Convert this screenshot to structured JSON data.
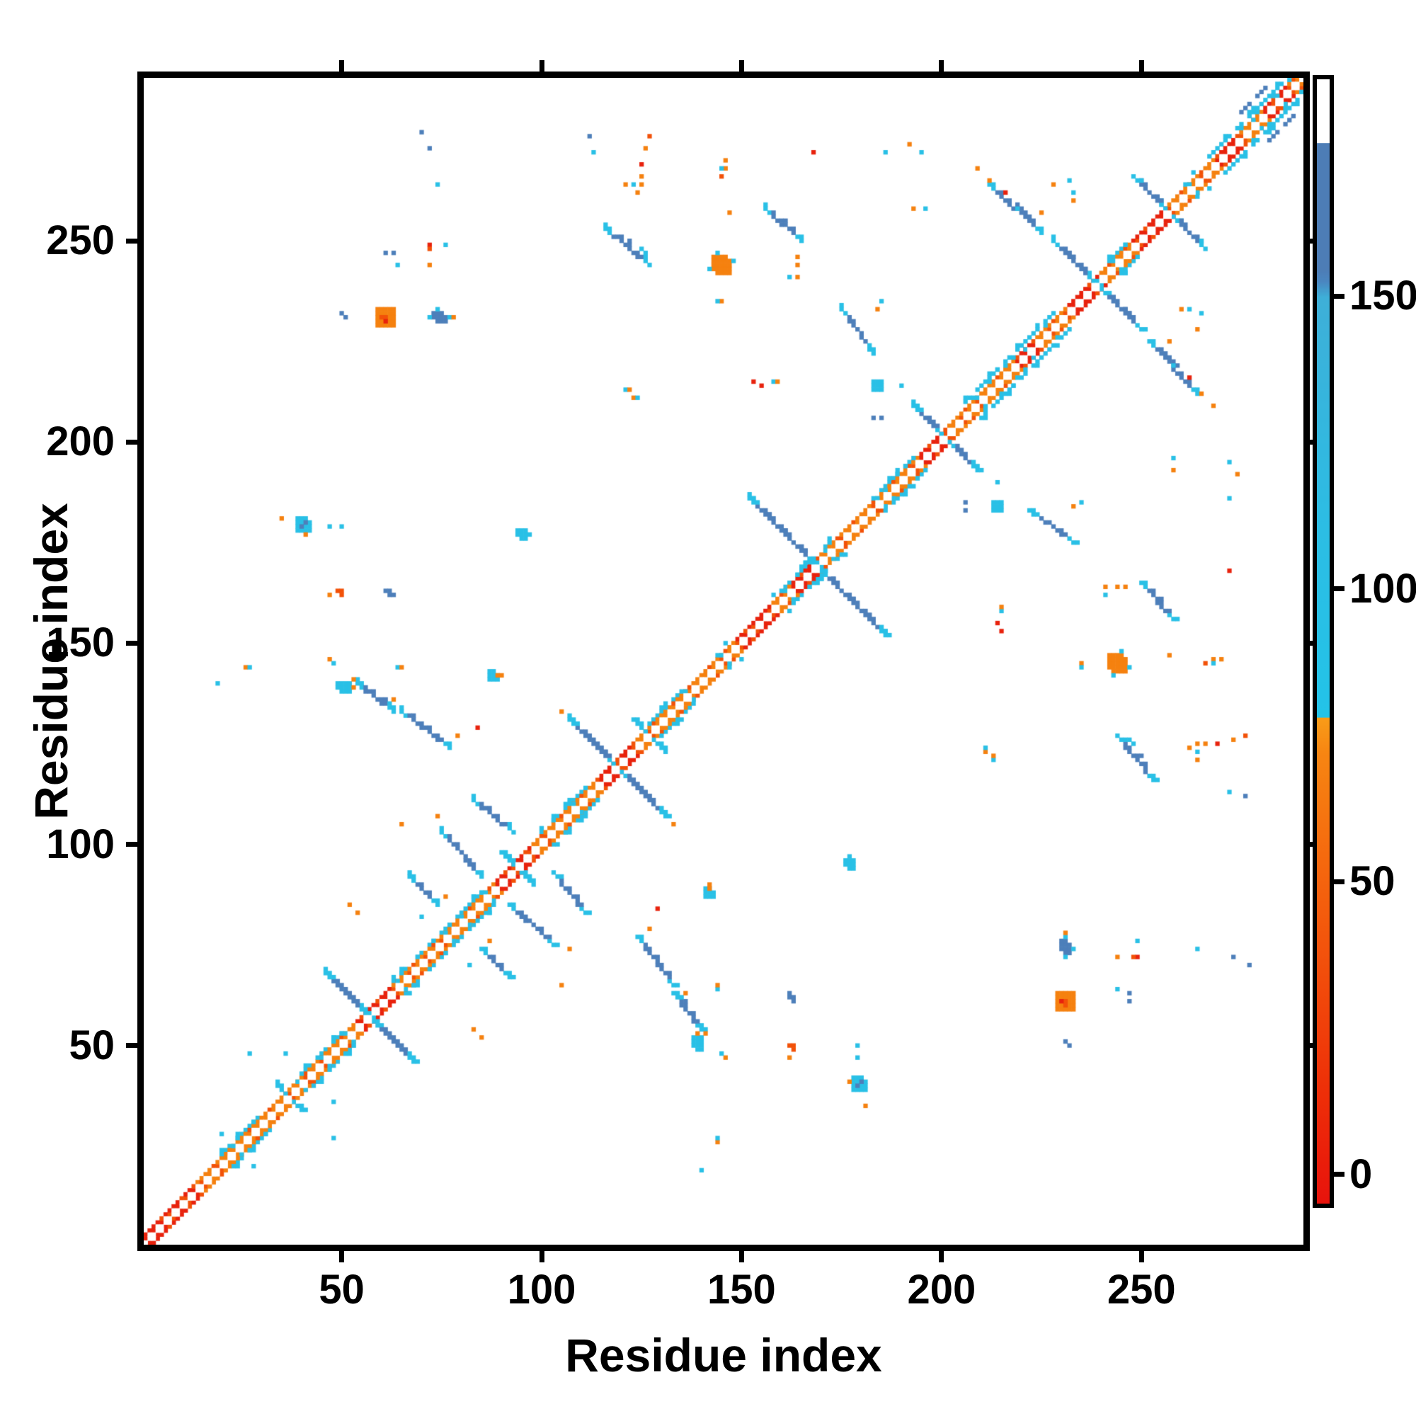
{
  "figure": {
    "background": "#ffffff"
  },
  "axes": {
    "x": {
      "title": "Residue index",
      "ticks": [
        50,
        100,
        150,
        200,
        250
      ],
      "range": [
        1,
        290
      ]
    },
    "y": {
      "title": "Residue index",
      "ticks": [
        50,
        100,
        150,
        200,
        250
      ],
      "range": [
        1,
        290
      ]
    }
  },
  "colorbar": {
    "ticks": [
      0,
      50,
      100,
      150
    ],
    "value_range": [
      -5,
      187
    ],
    "stops": [
      [
        0,
        "#e8130c"
      ],
      [
        10,
        "#ee2f08"
      ],
      [
        20,
        "#f24c0b"
      ],
      [
        30,
        "#f5670e"
      ],
      [
        40,
        "#f78512"
      ],
      [
        43.2,
        "#f99c18"
      ],
      [
        43.25,
        "#23c3e8"
      ],
      [
        60,
        "#2cbde4"
      ],
      [
        80.6,
        "#3eafd8"
      ],
      [
        82,
        "#4a86c0"
      ],
      [
        83,
        "#4d7db6"
      ],
      [
        94.3,
        "#4d7db6"
      ],
      [
        94.35,
        "#ffffff"
      ],
      [
        100,
        "#ffffff"
      ]
    ]
  },
  "chart_data": {
    "type": "heatmap",
    "subtype": "protein-residue-contact-map",
    "title": "",
    "xlabel": "Residue index",
    "ylabel": "Residue index",
    "n_residues": 290,
    "symmetric": true,
    "grid": false,
    "palette": {
      "r": "#e8220d",
      "q": "#f25108",
      "o": "#f5810f",
      "c": "#29c0e6",
      "b": "#4d7fba",
      "w": "#ffffff"
    },
    "diagonal": {
      "band_offsets": [
        1,
        2
      ],
      "default_color": "o",
      "red_segments": [
        [
          1,
          13
        ],
        [
          54,
          62
        ],
        [
          89,
          97
        ],
        [
          115,
          123
        ],
        [
          149,
          157
        ],
        [
          163,
          167
        ],
        [
          195,
          200
        ],
        [
          219,
          223
        ],
        [
          232,
          239
        ],
        [
          248,
          256
        ],
        [
          269,
          274
        ],
        [
          281,
          286
        ]
      ],
      "cyan_fleck_ranges": [
        [
          18,
          30
        ],
        [
          38,
          50
        ],
        [
          63,
          86
        ],
        [
          99,
          112
        ],
        [
          125,
          136
        ],
        [
          140,
          146
        ],
        [
          158,
          172
        ],
        [
          183,
          194
        ],
        [
          206,
          229
        ],
        [
          240,
          246
        ],
        [
          255,
          266
        ],
        [
          275,
          289
        ]
      ]
    },
    "hairpin_crossings": [
      {
        "center": 37,
        "half": 3
      },
      {
        "center": 57,
        "half": 11
      },
      {
        "center": 94,
        "half": 4,
        "cyan": true
      },
      {
        "center": 119,
        "half": 12
      },
      {
        "center": 127,
        "half": 4
      },
      {
        "center": 169,
        "half": 17
      },
      {
        "center": 201,
        "half": 8
      },
      {
        "center": 239,
        "half": 11
      },
      {
        "center": 257,
        "half": 9
      }
    ],
    "antiparallel_runs": [
      [
        65,
        133,
        77,
        124
      ],
      [
        54,
        140,
        63,
        133
      ],
      [
        67,
        92,
        74,
        85
      ],
      [
        75,
        103,
        85,
        92
      ],
      [
        83,
        111,
        93,
        103
      ],
      [
        116,
        253,
        127,
        244
      ],
      [
        212,
        264,
        225,
        252
      ],
      [
        156,
        258,
        165,
        250
      ],
      [
        175,
        233,
        183,
        222
      ]
    ],
    "parallel_cyan_runs": [
      [
        20,
        30,
        3
      ],
      [
        40,
        50,
        3
      ],
      [
        63,
        85,
        3
      ],
      [
        100,
        112,
        3
      ],
      [
        128,
        136,
        3
      ],
      [
        160,
        171,
        3
      ],
      [
        185,
        194,
        3
      ],
      [
        206,
        228,
        4
      ],
      [
        241,
        246,
        3
      ],
      [
        266,
        288,
        4
      ]
    ],
    "parallel_blue_runs": [
      [
        275,
        287,
        7
      ]
    ],
    "blobs": [
      [
        59,
        229,
        5,
        5,
        "o",
        "r"
      ],
      [
        143,
        242,
        5,
        5,
        "o",
        "c"
      ],
      [
        73,
        230,
        4,
        3,
        "b",
        "c"
      ],
      [
        39,
        178,
        4,
        4,
        "c",
        "b"
      ],
      [
        94,
        176,
        3,
        3,
        "c",
        ""
      ],
      [
        61,
        162,
        3,
        2,
        "b",
        ""
      ],
      [
        49,
        162,
        2,
        2,
        "q",
        ""
      ],
      [
        87,
        141,
        3,
        3,
        "c",
        "o"
      ],
      [
        49,
        138,
        4,
        3,
        "c",
        "o"
      ],
      [
        183,
        213,
        3,
        3,
        "c",
        ""
      ],
      [
        152,
        215,
        2,
        1,
        "r",
        ""
      ]
    ],
    "speckles": [
      [
        70,
        277,
        "b"
      ],
      [
        72,
        273,
        "b"
      ],
      [
        74,
        264,
        "c"
      ],
      [
        112,
        276,
        "b"
      ],
      [
        113,
        272,
        "c"
      ],
      [
        127,
        276,
        "q"
      ],
      [
        126,
        273,
        "o"
      ],
      [
        125,
        269,
        "r"
      ],
      [
        125,
        266,
        "o"
      ],
      [
        121,
        264,
        "o"
      ],
      [
        123,
        264,
        "c"
      ],
      [
        125,
        264,
        "o"
      ],
      [
        124,
        262,
        "o"
      ],
      [
        146,
        270,
        "o"
      ],
      [
        146,
        268,
        "o"
      ],
      [
        145,
        268,
        "c"
      ],
      [
        145,
        266,
        "q"
      ],
      [
        61,
        247,
        "b"
      ],
      [
        63,
        247,
        "b"
      ],
      [
        72,
        249,
        "r"
      ],
      [
        72,
        248,
        "q"
      ],
      [
        76,
        249,
        "c"
      ],
      [
        72,
        244,
        "o"
      ],
      [
        64,
        244,
        "c"
      ],
      [
        122,
        250,
        "b"
      ],
      [
        125,
        248,
        "c"
      ],
      [
        126,
        247,
        "c"
      ],
      [
        50,
        232,
        "b"
      ],
      [
        51,
        231,
        "b"
      ],
      [
        78,
        231,
        "o"
      ],
      [
        121,
        213,
        "c"
      ],
      [
        122,
        213,
        "o"
      ],
      [
        35,
        181,
        "o"
      ],
      [
        41,
        177,
        "o"
      ],
      [
        47,
        179,
        "c"
      ],
      [
        50,
        179,
        "c"
      ],
      [
        97,
        177,
        "c"
      ],
      [
        47,
        162,
        "o"
      ],
      [
        145,
        235,
        "o"
      ],
      [
        144,
        235,
        "c"
      ],
      [
        63,
        136,
        "o"
      ],
      [
        84,
        129,
        "r"
      ],
      [
        79,
        127,
        "o"
      ],
      [
        74,
        107,
        "o"
      ],
      [
        65,
        105,
        "o"
      ],
      [
        76,
        87,
        "o"
      ],
      [
        27,
        48,
        "c"
      ],
      [
        48,
        36,
        "c"
      ],
      [
        28,
        20,
        "c"
      ],
      [
        19,
        140,
        "c"
      ],
      [
        105,
        133,
        "o"
      ],
      [
        26,
        144,
        "o"
      ],
      [
        27,
        144,
        "c"
      ],
      [
        47,
        146,
        "o"
      ],
      [
        48,
        145,
        "c"
      ],
      [
        64,
        144,
        "c"
      ],
      [
        65,
        144,
        "o"
      ],
      [
        53,
        141,
        "o"
      ],
      [
        89,
        142,
        "o"
      ],
      [
        52,
        85,
        "o"
      ],
      [
        54,
        83,
        "o"
      ],
      [
        70,
        82,
        "c"
      ],
      [
        209,
        268,
        "o"
      ],
      [
        232,
        265,
        "c"
      ],
      [
        186,
        272,
        "c"
      ],
      [
        195,
        272,
        "c"
      ],
      [
        192,
        274,
        "o"
      ],
      [
        214,
        190,
        "c"
      ],
      [
        162,
        241,
        "c"
      ],
      [
        164,
        241,
        "o"
      ],
      [
        164,
        244,
        "o"
      ],
      [
        164,
        246,
        "o"
      ],
      [
        158,
        215,
        "c"
      ],
      [
        159,
        215,
        "o"
      ],
      [
        155,
        214,
        "r"
      ],
      [
        123,
        211,
        "o"
      ],
      [
        124,
        211,
        "c"
      ],
      [
        233,
        262,
        "c"
      ],
      [
        228,
        264,
        "o"
      ],
      [
        168,
        272,
        "r"
      ],
      [
        216,
        262,
        "r"
      ],
      [
        212,
        265,
        "o"
      ],
      [
        233,
        260,
        "o"
      ],
      [
        225,
        257,
        "o"
      ],
      [
        219,
        258,
        "c"
      ],
      [
        196,
        258,
        "c"
      ],
      [
        193,
        258,
        "o"
      ],
      [
        184,
        233,
        "o"
      ],
      [
        185,
        235,
        "c"
      ],
      [
        183,
        206,
        "b"
      ],
      [
        185,
        206,
        "b"
      ],
      [
        147,
        257,
        "o"
      ]
    ]
  }
}
